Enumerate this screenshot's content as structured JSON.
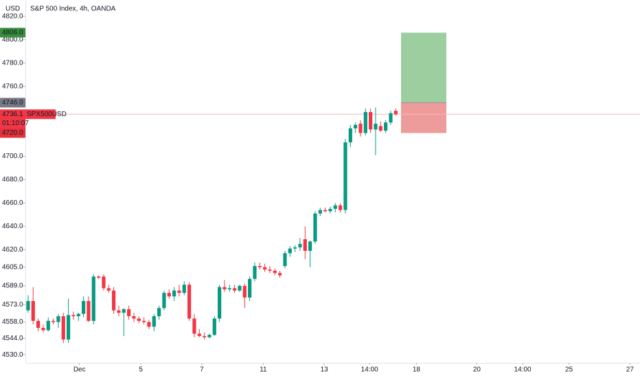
{
  "chart_data": {
    "type": "candlestick",
    "title": "S&P 500 Index, 4h, OANDA",
    "currency": "USD",
    "symbol": "SPX500USD",
    "countdown": "01:10:07",
    "up_color": "#089981",
    "down_color": "#f23645",
    "open": [
      4568,
      4576,
      4559,
      4553,
      4551,
      4559,
      4558,
      4563,
      4543,
      4564,
      4563,
      4565,
      4576,
      4559,
      4597,
      4597,
      4587,
      4585,
      4568,
      4566,
      4569,
      4563,
      4561,
      4559,
      4558,
      4554,
      4563,
      4570,
      4583,
      4580,
      4585,
      4583,
      4590,
      4561,
      4548,
      4546,
      4545,
      4547,
      4561,
      4588,
      4586,
      4587,
      4585,
      4589,
      4579,
      4595,
      4606,
      4605,
      4603,
      4602,
      4600,
      4606,
      4617,
      4621,
      4622,
      4629,
      4619,
      4627,
      4651,
      4654,
      4653,
      4655,
      4658,
      4654,
      4712,
      4724,
      4728,
      4720,
      4738,
      4723,
      4726,
      4722,
      4729,
      4739
    ],
    "high": [
      4581,
      4588,
      4561,
      4556,
      4562,
      4561,
      4565,
      4566,
      4578,
      4567,
      4566,
      4580,
      4580,
      4599,
      4598,
      4599,
      4590,
      4588,
      4572,
      4570,
      4572,
      4566,
      4563,
      4562,
      4560,
      4565,
      4572,
      4585,
      4586,
      4588,
      4590,
      4593,
      4592,
      4565,
      4552,
      4549,
      4548,
      4563,
      4590,
      4594,
      4590,
      4590,
      4590,
      4591,
      4597,
      4609,
      4609,
      4608,
      4606,
      4604,
      4602,
      4619,
      4623,
      4624,
      4630,
      4640,
      4628,
      4653,
      4656,
      4656,
      4657,
      4660,
      4660,
      4715,
      4727,
      4729,
      4731,
      4741,
      4741,
      4742,
      4730,
      4731,
      4739,
      4741
    ],
    "low": [
      4566,
      4556,
      4550,
      4549,
      4550,
      4556,
      4553,
      4540,
      4540,
      4560,
      4559,
      4562,
      4558,
      4556,
      4595,
      4585,
      4583,
      4565,
      4563,
      4546,
      4560,
      4558,
      4557,
      4556,
      4552,
      4550,
      4560,
      4568,
      4578,
      4576,
      4580,
      4581,
      4559,
      4545,
      4545,
      4543,
      4544,
      4546,
      4558,
      4584,
      4584,
      4583,
      4584,
      4570,
      4576,
      4593,
      4603,
      4601,
      4600,
      4598,
      4596,
      4604,
      4614,
      4618,
      4619,
      4612,
      4605,
      4625,
      4649,
      4652,
      4651,
      4652,
      4652,
      4651,
      4708,
      4720,
      4717,
      4718,
      4720,
      4701,
      4721,
      4720,
      4727,
      4735
    ],
    "close": [
      4576,
      4559,
      4553,
      4551,
      4559,
      4558,
      4563,
      4543,
      4564,
      4563,
      4565,
      4576,
      4559,
      4597,
      4596,
      4587,
      4585,
      4568,
      4566,
      4569,
      4563,
      4561,
      4559,
      4558,
      4554,
      4563,
      4570,
      4583,
      4580,
      4585,
      4583,
      4590,
      4561,
      4548,
      4546,
      4545,
      4547,
      4561,
      4588,
      4586,
      4587,
      4585,
      4589,
      4579,
      4595,
      4606,
      4605,
      4603,
      4602,
      4600,
      4598,
      4617,
      4621,
      4622,
      4625,
      4619,
      4627,
      4651,
      4654,
      4653,
      4655,
      4658,
      4654,
      4712,
      4724,
      4727,
      4720,
      4738,
      4723,
      4728,
      4722,
      4729,
      4737,
      4736.1
    ],
    "ylim": [
      4523,
      4834
    ],
    "yticks": [
      {
        "value": 4530,
        "label": "4530.0"
      },
      {
        "value": 4544,
        "label": "4544.0"
      },
      {
        "value": 4558,
        "label": "4558.0"
      },
      {
        "value": 4573,
        "label": "4573.0"
      },
      {
        "value": 4589,
        "label": "4589.0"
      },
      {
        "value": 4605,
        "label": "4605.0"
      },
      {
        "value": 4620,
        "label": "4620.0"
      },
      {
        "value": 4640,
        "label": "4640.0"
      },
      {
        "value": 4660,
        "label": "4660.0"
      },
      {
        "value": 4680,
        "label": "4680.0"
      },
      {
        "value": 4700,
        "label": "4700.0"
      },
      {
        "value": 4760,
        "label": "4760.0"
      },
      {
        "value": 4780,
        "label": "4780.0"
      },
      {
        "value": 4800,
        "label": "4800.0"
      },
      {
        "value": 4820,
        "label": "4820.0"
      }
    ],
    "xlim": [
      -0.4,
      121.5
    ],
    "xticks": [
      {
        "value": 10.2,
        "label": "Dec"
      },
      {
        "value": 22.4,
        "label": "5"
      },
      {
        "value": 34.5,
        "label": "7"
      },
      {
        "value": 46.7,
        "label": "11"
      },
      {
        "value": 58.8,
        "label": "13"
      },
      {
        "value": 67.8,
        "label": "14:00"
      },
      {
        "value": 77.1,
        "label": "18"
      },
      {
        "value": 89.1,
        "label": "20"
      },
      {
        "value": 98.2,
        "label": "14:00"
      },
      {
        "value": 107.4,
        "label": "25"
      },
      {
        "value": 119.5,
        "label": "27"
      }
    ],
    "last_price": {
      "value": 4736.1,
      "label": "4736.1"
    },
    "position": {
      "target": {
        "value": 4806,
        "label": "4806.0"
      },
      "entry": {
        "value": 4746,
        "label": "4746.0"
      },
      "stop": {
        "value": 4720,
        "label": "4720.0"
      }
    }
  }
}
